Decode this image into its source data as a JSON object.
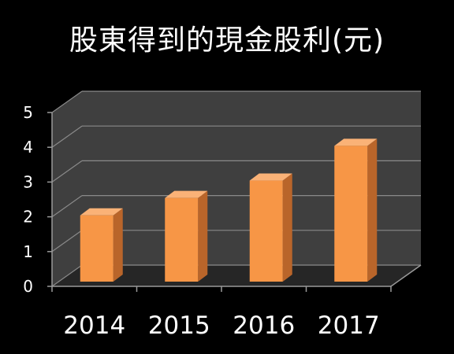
{
  "chart_data": {
    "type": "bar",
    "title": "股東得到的現金股利(元)",
    "categories": [
      "2014",
      "2015",
      "2016",
      "2017"
    ],
    "values": [
      2.2,
      2.7,
      3.2,
      4.2
    ],
    "ylim": [
      0,
      5
    ],
    "yticks": [
      "0",
      "1",
      "2",
      "3",
      "4",
      "5"
    ],
    "grid": true,
    "three_d": true,
    "colors": {
      "bar_front": "#F79646",
      "bar_side": "#B9652A",
      "bar_top": "#FAB277",
      "wall": "#3F3F3F",
      "floor": "#262626",
      "gridline": "#8A8A8A",
      "axis": "#9A9A9A",
      "background": "#000000",
      "text": "#FFFFFF"
    }
  }
}
